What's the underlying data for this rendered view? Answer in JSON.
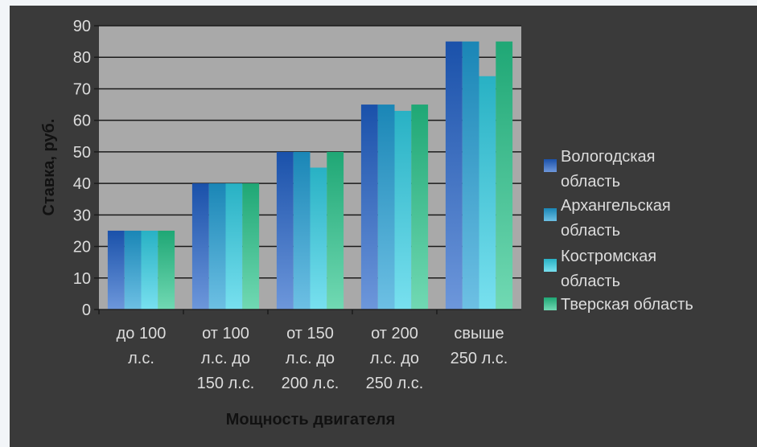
{
  "chart_data": {
    "type": "bar",
    "categories": [
      [
        "до 100",
        "л.с."
      ],
      [
        "от 100",
        "л.с. до",
        "150 л.с."
      ],
      [
        "от 150",
        "л.с. до",
        "200 л.с."
      ],
      [
        "от 200",
        "л.с. до",
        "250 л.с."
      ],
      [
        "свыше",
        "250 л.с."
      ]
    ],
    "series": [
      {
        "name": [
          "Вологодская",
          "область"
        ],
        "values": [
          25,
          40,
          50,
          65,
          85
        ],
        "color": "#1f5fc8"
      },
      {
        "name": [
          "Архангельская",
          "область"
        ],
        "values": [
          25,
          40,
          50,
          65,
          85
        ],
        "color": "#1f9ed6"
      },
      {
        "name": [
          "Костромская",
          "область"
        ],
        "values": [
          25,
          40,
          45,
          63,
          74
        ],
        "color": "#2fd0e6"
      },
      {
        "name": [
          "Тверская область"
        ],
        "values": [
          25,
          40,
          50,
          65,
          85
        ],
        "color": "#25c48a"
      }
    ],
    "xlabel": "Мощность двигателя",
    "ylabel": "Ставка, руб.",
    "ylim": [
      0,
      90
    ],
    "yticks": [
      0,
      10,
      20,
      30,
      40,
      50,
      60,
      70,
      80,
      90
    ],
    "grid": true,
    "legend": "right"
  }
}
